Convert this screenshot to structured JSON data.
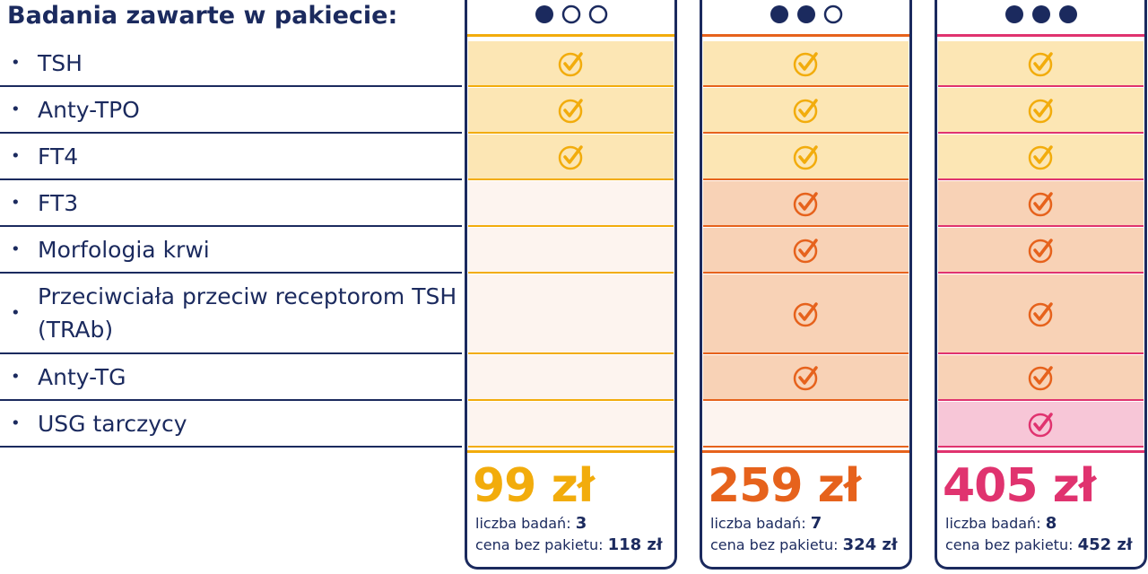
{
  "header": {
    "title": "Badania zawarte w pakiecie:"
  },
  "tests": [
    "TSH",
    "Anty-TPO",
    "FT4",
    "FT3",
    "Morfologia krwi",
    "Przeciwciała przeciw receptorom TSH (TRAb)",
    "Anty-TG",
    "USG tarczycy"
  ],
  "count_label": "liczba badań:",
  "regular_price_label": "cena bez pakietu:",
  "packages": [
    {
      "level": 1,
      "color": "#f2ac0c",
      "cell_color": "#fce6b4",
      "price": "99 zł",
      "count": "3",
      "regular_price": "118 zł",
      "checks": [
        true,
        true,
        true,
        false,
        false,
        false,
        false,
        false
      ]
    },
    {
      "level": 2,
      "color": "#e6621c",
      "cell_color": "#f8d2b6",
      "price": "259 zł",
      "count": "7",
      "regular_price": "324 zł",
      "checks": [
        true,
        true,
        true,
        true,
        true,
        true,
        true,
        false
      ]
    },
    {
      "level": 3,
      "color": "#e0336f",
      "cell_color": "#f7c6d7",
      "price": "405 zł",
      "count": "8",
      "regular_price": "452 zł",
      "checks": [
        true,
        true,
        true,
        true,
        true,
        true,
        true,
        true
      ]
    }
  ]
}
